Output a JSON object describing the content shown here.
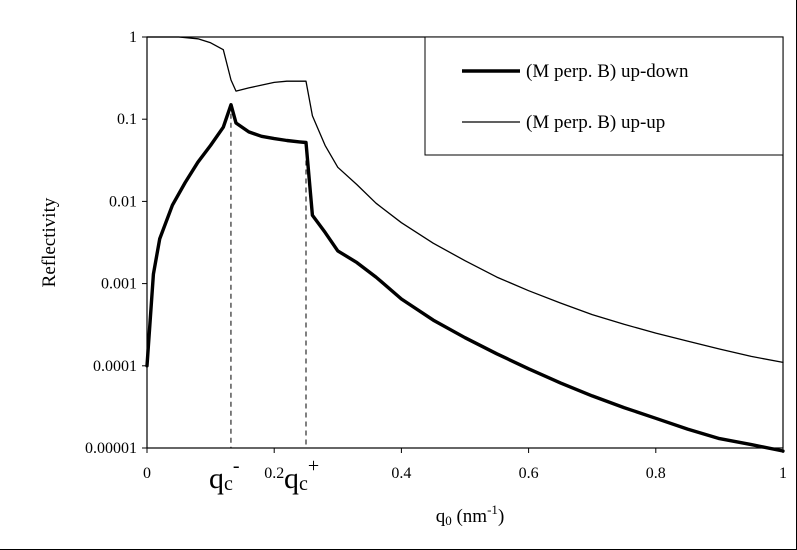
{
  "chart_data": {
    "type": "line",
    "title": "",
    "xlabel": {
      "prefix": "q",
      "sub": "0",
      "unit_pre": " (nm",
      "unit_sup": "-1",
      "unit_post": ")"
    },
    "ylabel": "Reflectivity",
    "xlim": [
      0,
      1
    ],
    "ylim": [
      1e-05,
      1
    ],
    "y_scale": "log",
    "grid": false,
    "legend_position": "top-right",
    "x_tick_labels": [
      {
        "value": 0,
        "label": "0"
      },
      {
        "value": 0.2,
        "label": "0.2"
      },
      {
        "value": 0.4,
        "label": "0.4"
      },
      {
        "value": 0.6,
        "label": "0.6"
      },
      {
        "value": 0.8,
        "label": "0.8"
      },
      {
        "value": 1,
        "label": "1"
      }
    ],
    "y_tick_labels": [
      {
        "value": 1,
        "label": "1"
      },
      {
        "value": 0.1,
        "label": "0.1"
      },
      {
        "value": 0.01,
        "label": "0.01"
      },
      {
        "value": 0.001,
        "label": "0.001"
      },
      {
        "value": 0.0001,
        "label": "0.0001"
      },
      {
        "value": 1e-05,
        "label": "0.00001"
      }
    ],
    "series": [
      {
        "name": "(M perp. B) up-down",
        "style": "thick",
        "x": [
          0,
          0.01,
          0.02,
          0.04,
          0.06,
          0.08,
          0.1,
          0.12,
          0.132,
          0.14,
          0.16,
          0.18,
          0.2,
          0.22,
          0.24,
          0.25,
          0.26,
          0.28,
          0.3,
          0.33,
          0.36,
          0.4,
          0.45,
          0.5,
          0.55,
          0.6,
          0.65,
          0.7,
          0.75,
          0.8,
          0.85,
          0.9,
          0.95,
          1.0
        ],
        "y": [
          0.0001,
          0.0013,
          0.0035,
          0.009,
          0.017,
          0.03,
          0.048,
          0.08,
          0.15,
          0.09,
          0.07,
          0.062,
          0.058,
          0.055,
          0.053,
          0.052,
          0.0068,
          0.0042,
          0.0025,
          0.0018,
          0.0012,
          0.00065,
          0.00036,
          0.00022,
          0.00014,
          9.2e-05,
          6.2e-05,
          4.3e-05,
          3.1e-05,
          2.3e-05,
          1.7e-05,
          1.3e-05,
          1.1e-05,
          9.2e-06
        ]
      },
      {
        "name": "(M perp. B) up-up",
        "style": "thin",
        "x": [
          0,
          0.05,
          0.08,
          0.1,
          0.12,
          0.132,
          0.14,
          0.16,
          0.18,
          0.2,
          0.22,
          0.24,
          0.25,
          0.26,
          0.28,
          0.3,
          0.33,
          0.36,
          0.4,
          0.45,
          0.5,
          0.55,
          0.6,
          0.65,
          0.7,
          0.75,
          0.8,
          0.85,
          0.9,
          0.95,
          1.0
        ],
        "y": [
          1.0,
          1.0,
          0.95,
          0.85,
          0.7,
          0.3,
          0.22,
          0.24,
          0.26,
          0.28,
          0.29,
          0.29,
          0.29,
          0.11,
          0.048,
          0.026,
          0.016,
          0.0095,
          0.0055,
          0.0031,
          0.0019,
          0.0012,
          0.00082,
          0.00058,
          0.00042,
          0.00032,
          0.00025,
          0.0002,
          0.00016,
          0.00013,
          0.00011
        ]
      }
    ],
    "annotations": [
      {
        "kind": "dashed-vline",
        "x": 0.132,
        "label": "q",
        "sub": "c",
        "sup": "-"
      },
      {
        "kind": "dashed-vline",
        "x": 0.25,
        "label": "q",
        "sub": "c",
        "sup": "+"
      }
    ]
  }
}
